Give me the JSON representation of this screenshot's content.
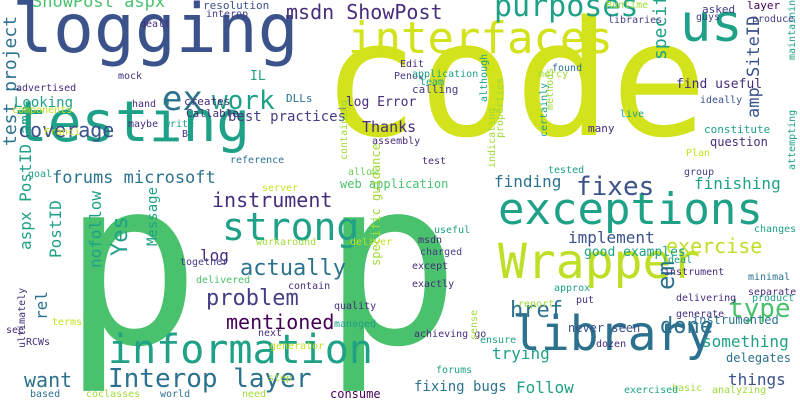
{
  "cloud": {
    "colors": {
      "yellow": "#d2e21b",
      "lime": "#bddf26",
      "green": "#4ac16d",
      "teal": "#1fa187",
      "sea": "#22a884",
      "cyan": "#2c728e",
      "blue": "#3b528b",
      "indigo": "#433e85",
      "navy": "#472d7b",
      "purple": "#440154",
      "mint": "#6ece58",
      "light": "#a0da39",
      "pale": "#c8e020"
    },
    "words": [
      {
        "text": "code",
        "color": "yellow"
      },
      {
        "text": "p",
        "color": "green"
      },
      {
        "text": "p",
        "color": "green"
      },
      {
        "text": "logging",
        "color": "blue"
      },
      {
        "text": "testing",
        "color": "teal"
      },
      {
        "text": "interfaces",
        "color": "yellow"
      },
      {
        "text": "us",
        "color": "teal"
      },
      {
        "text": "exceptions",
        "color": "teal"
      },
      {
        "text": "Wrapper",
        "color": "lime"
      },
      {
        "text": "library",
        "color": "cyan"
      },
      {
        "text": "information",
        "color": "teal"
      },
      {
        "text": "strong",
        "color": "teal"
      },
      {
        "text": "ex",
        "color": "cyan"
      },
      {
        "text": "work",
        "color": "teal"
      },
      {
        "text": "purposes",
        "color": "teal"
      },
      {
        "text": "Interop layer",
        "color": "cyan"
      },
      {
        "text": "ShowPost aspx",
        "color": "green"
      },
      {
        "text": "msdn ShowPost",
        "color": "navy"
      },
      {
        "text": "actually",
        "color": "cyan"
      },
      {
        "text": "problem",
        "color": "indigo"
      },
      {
        "text": "mentioned",
        "color": "purple"
      },
      {
        "text": "instrument",
        "color": "navy"
      },
      {
        "text": "fixes",
        "color": "blue"
      },
      {
        "text": "coverage",
        "color": "blue"
      },
      {
        "text": "forums microsoft",
        "color": "cyan"
      },
      {
        "text": "exercise",
        "color": "lime"
      },
      {
        "text": "href",
        "color": "cyan"
      },
      {
        "text": "type",
        "color": "green"
      },
      {
        "text": "done",
        "color": "cyan"
      },
      {
        "text": "em",
        "color": "cyan"
      },
      {
        "text": "want",
        "color": "cyan"
      },
      {
        "text": "Yes",
        "color": "teal"
      },
      {
        "text": "test project",
        "color": "cyan"
      },
      {
        "text": "amp SiteID",
        "color": "blue"
      },
      {
        "text": "specifically",
        "color": "teal"
      },
      {
        "text": "finishing",
        "color": "teal"
      },
      {
        "text": "finding",
        "color": "cyan"
      },
      {
        "text": "implement",
        "color": "blue"
      },
      {
        "text": "something",
        "color": "teal"
      },
      {
        "text": "trying",
        "color": "teal"
      },
      {
        "text": "things",
        "color": "blue"
      },
      {
        "text": "Follow",
        "color": "teal"
      },
      {
        "text": "fixing bugs",
        "color": "cyan"
      },
      {
        "text": "Thanks",
        "color": "navy"
      },
      {
        "text": "Looking",
        "color": "teal"
      },
      {
        "text": "nofollow",
        "color": "teal"
      },
      {
        "text": "aspx PostID amp",
        "color": "teal"
      },
      {
        "text": "PostID",
        "color": "teal"
      },
      {
        "text": "rel",
        "color": "cyan"
      },
      {
        "text": "Message",
        "color": "teal"
      },
      {
        "text": "log",
        "color": "navy"
      },
      {
        "text": "find useful",
        "color": "navy"
      },
      {
        "text": "layer",
        "color": "purple"
      },
      {
        "text": "good examples",
        "color": "teal"
      },
      {
        "text": "delegates",
        "color": "cyan"
      },
      {
        "text": "instrumented",
        "color": "cyan"
      },
      {
        "text": "never seen",
        "color": "blue"
      },
      {
        "text": "consume",
        "color": "purple"
      },
      {
        "text": "web application",
        "color": "green"
      },
      {
        "text": "best practices",
        "color": "indigo"
      },
      {
        "text": "_log Error",
        "color": "navy"
      },
      {
        "text": "DLLs",
        "color": "cyan"
      },
      {
        "text": "Callable",
        "color": "navy"
      },
      {
        "text": "creates",
        "color": "navy"
      },
      {
        "text": "IL",
        "color": "teal"
      },
      {
        "text": "Edit",
        "color": "navy"
      },
      {
        "text": "interop",
        "color": "indigo"
      },
      {
        "text": "resolution",
        "color": "blue"
      },
      {
        "text": "Penov",
        "color": "indigo"
      },
      {
        "text": "application",
        "color": "teal"
      },
      {
        "text": "libraries",
        "color": "indigo"
      },
      {
        "text": "Runtime",
        "color": "light"
      },
      {
        "text": "asked",
        "color": "indigo"
      },
      {
        "text": "produce",
        "color": "indigo"
      },
      {
        "text": "guys",
        "color": "indigo"
      },
      {
        "text": "calling",
        "color": "indigo"
      },
      {
        "text": "assembly",
        "color": "navy"
      },
      {
        "text": "question",
        "color": "navy"
      },
      {
        "text": "constitute",
        "color": "teal"
      },
      {
        "text": "many",
        "color": "navy"
      },
      {
        "text": "test",
        "color": "navy"
      },
      {
        "text": "found",
        "color": "cyan"
      },
      {
        "text": "mercy",
        "color": "light"
      },
      {
        "text": "team",
        "color": "teal"
      },
      {
        "text": "ideally",
        "color": "blue"
      },
      {
        "text": "maintaining",
        "color": "teal"
      },
      {
        "text": "although",
        "color": "teal"
      },
      {
        "text": "properties",
        "color": "light"
      },
      {
        "text": "methods",
        "color": "light"
      },
      {
        "text": "certainly",
        "color": "teal"
      },
      {
        "text": "live",
        "color": "teal"
      },
      {
        "text": "Plan",
        "color": "pale"
      },
      {
        "text": "group",
        "color": "indigo"
      },
      {
        "text": "attempting",
        "color": "teal"
      },
      {
        "text": "tested",
        "color": "teal"
      },
      {
        "text": "indicating",
        "color": "light"
      },
      {
        "text": "containing",
        "color": "light"
      },
      {
        "text": "allow",
        "color": "mint"
      },
      {
        "text": "server",
        "color": "pale"
      },
      {
        "text": "goal",
        "color": "teal"
      },
      {
        "text": "workaround",
        "color": "light"
      },
      {
        "text": "deliver",
        "color": "pale"
      },
      {
        "text": "delivered",
        "color": "green"
      },
      {
        "text": "together",
        "color": "indigo"
      },
      {
        "text": "contain",
        "color": "navy"
      },
      {
        "text": "quality",
        "color": "navy"
      },
      {
        "text": "managed",
        "color": "teal"
      },
      {
        "text": "generator",
        "color": "pale"
      },
      {
        "text": "next",
        "color": "navy"
      },
      {
        "text": "useful",
        "color": "teal"
      },
      {
        "text": "msdn",
        "color": "navy"
      },
      {
        "text": "charged",
        "color": "indigo"
      },
      {
        "text": "except",
        "color": "navy"
      },
      {
        "text": "exactly",
        "color": "navy"
      },
      {
        "text": "ideal",
        "color": "teal"
      },
      {
        "text": "instrument",
        "color": "navy"
      },
      {
        "text": "changes",
        "color": "teal"
      },
      {
        "text": "minimal",
        "color": "cyan"
      },
      {
        "text": "separate",
        "color": "navy"
      },
      {
        "text": "product",
        "color": "teal"
      },
      {
        "text": "report",
        "color": "light"
      },
      {
        "text": "approx",
        "color": "teal"
      },
      {
        "text": "put",
        "color": "navy"
      },
      {
        "text": "delivering",
        "color": "navy"
      },
      {
        "text": "generate",
        "color": "navy"
      },
      {
        "text": "achieving go",
        "color": "navy"
      },
      {
        "text": "ensure",
        "color": "teal"
      },
      {
        "text": "dozen",
        "color": "navy"
      },
      {
        "text": "sense",
        "color": "light"
      },
      {
        "text": "forums",
        "color": "teal"
      },
      {
        "text": "basic",
        "color": "light"
      },
      {
        "text": "exercised",
        "color": "teal"
      },
      {
        "text": "analyzing",
        "color": "light"
      },
      {
        "text": "need",
        "color": "light"
      },
      {
        "text": "world",
        "color": "cyan"
      },
      {
        "text": "step",
        "color": "light"
      },
      {
        "text": "coclasses",
        "color": "light"
      },
      {
        "text": "based",
        "color": "cyan"
      },
      {
        "text": "ultimately",
        "color": "navy"
      },
      {
        "text": "RCWs",
        "color": "navy"
      },
      {
        "text": "see",
        "color": "navy"
      },
      {
        "text": "terms",
        "color": "pale"
      },
      {
        "text": "components",
        "color": "pale"
      },
      {
        "text": "advertised",
        "color": "navy"
      },
      {
        "text": "hand",
        "color": "navy"
      },
      {
        "text": "maybe",
        "color": "navy"
      },
      {
        "text": "write",
        "color": "teal"
      },
      {
        "text": "B",
        "color": "navy"
      },
      {
        "text": "Franci",
        "color": "pale"
      },
      {
        "text": "mock",
        "color": "navy"
      },
      {
        "text": "specific guidance",
        "color": "light"
      },
      {
        "text": "dealt",
        "color": "navy"
      },
      {
        "text": "reference",
        "color": "cyan"
      }
    ]
  }
}
